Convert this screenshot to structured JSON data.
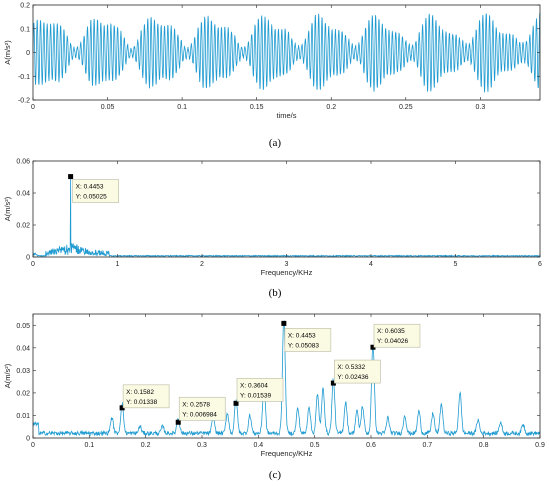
{
  "chart_data": [
    {
      "id": "a",
      "type": "line",
      "caption": "(a)",
      "xlabel": "time/s",
      "ylabel": "A(m/s²)",
      "xlim": [
        0,
        0.34
      ],
      "ylim": [
        -0.2,
        0.2
      ],
      "xticks": [
        0,
        0.05,
        0.1,
        0.15,
        0.2,
        0.25,
        0.3
      ],
      "xtick_labels": [
        "0",
        "0.05",
        "0.1",
        "0.15",
        "0.2",
        "0.25",
        "0.3"
      ],
      "yticks": [
        -0.2,
        -0.1,
        0,
        0.1,
        0.2
      ],
      "ytick_labels": [
        "-0.2",
        "-0.1",
        "0",
        "0.1",
        "0.2"
      ],
      "series": [
        {
          "carrier_hz": 445,
          "amplitude_peak": 0.17
        }
      ],
      "color": "#1f9bd1"
    },
    {
      "id": "b",
      "type": "line",
      "caption": "(b)",
      "xlabel": "Frequency/KHz",
      "ylabel": "A(m/s²)",
      "xlim": [
        0,
        6
      ],
      "ylim": [
        0,
        0.06
      ],
      "xticks": [
        0,
        1,
        2,
        3,
        4,
        5,
        6
      ],
      "xtick_labels": [
        "0",
        "1",
        "2",
        "3",
        "4",
        "5",
        "6"
      ],
      "yticks": [
        0,
        0.02,
        0.04,
        0.06
      ],
      "ytick_labels": [
        "0",
        "0.02",
        "0.04",
        "0.06"
      ],
      "peaks": [
        {
          "x": 0.4453,
          "y": 0.05025
        }
      ],
      "datatips": [
        {
          "x_label": "X: 0.4453",
          "y_label": "Y: 0.05025"
        }
      ],
      "color": "#1f9bd1"
    },
    {
      "id": "c",
      "type": "line",
      "caption": "(c)",
      "xlabel": "Frequency/KHz",
      "ylabel": "A(m/s²)",
      "xlim": [
        0,
        0.9
      ],
      "ylim": [
        0,
        0.055
      ],
      "xticks": [
        0,
        0.1,
        0.2,
        0.3,
        0.4,
        0.5,
        0.6,
        0.7,
        0.8,
        0.9
      ],
      "xtick_labels": [
        "0",
        "0.1",
        "0.2",
        "0.3",
        "0.4",
        "0.5",
        "0.6",
        "0.7",
        "0.8",
        "0.9"
      ],
      "yticks": [
        0,
        0.01,
        0.02,
        0.03,
        0.04,
        0.05
      ],
      "ytick_labels": [
        "0",
        "0.01",
        "0.02",
        "0.03",
        "0.04",
        "0.05"
      ],
      "peaks": [
        {
          "x": 0.1582,
          "y": 0.01338
        },
        {
          "x": 0.2578,
          "y": 0.006984
        },
        {
          "x": 0.3604,
          "y": 0.01539
        },
        {
          "x": 0.4453,
          "y": 0.05083
        },
        {
          "x": 0.5332,
          "y": 0.02436
        },
        {
          "x": 0.6035,
          "y": 0.04026
        }
      ],
      "minor_peaks": [
        {
          "x": 0.14,
          "y": 0.007
        },
        {
          "x": 0.19,
          "y": 0.003
        },
        {
          "x": 0.23,
          "y": 0.003
        },
        {
          "x": 0.32,
          "y": 0.007
        },
        {
          "x": 0.345,
          "y": 0.009
        },
        {
          "x": 0.385,
          "y": 0.008
        },
        {
          "x": 0.41,
          "y": 0.021
        },
        {
          "x": 0.47,
          "y": 0.011
        },
        {
          "x": 0.49,
          "y": 0.012
        },
        {
          "x": 0.505,
          "y": 0.017
        },
        {
          "x": 0.515,
          "y": 0.02
        },
        {
          "x": 0.555,
          "y": 0.014
        },
        {
          "x": 0.575,
          "y": 0.01
        },
        {
          "x": 0.585,
          "y": 0.012
        },
        {
          "x": 0.63,
          "y": 0.007
        },
        {
          "x": 0.66,
          "y": 0.008
        },
        {
          "x": 0.685,
          "y": 0.01
        },
        {
          "x": 0.71,
          "y": 0.009
        },
        {
          "x": 0.725,
          "y": 0.013
        },
        {
          "x": 0.758,
          "y": 0.018
        },
        {
          "x": 0.79,
          "y": 0.006
        },
        {
          "x": 0.83,
          "y": 0.005
        },
        {
          "x": 0.87,
          "y": 0.004
        }
      ],
      "datatips": [
        {
          "x_label": "X: 0.1582",
          "y_label": "Y: 0.01338"
        },
        {
          "x_label": "X: 0.2578",
          "y_label": "Y: 0.006984"
        },
        {
          "x_label": "X: 0.3604",
          "y_label": "Y: 0.01539"
        },
        {
          "x_label": "X: 0.4453",
          "y_label": "Y: 0.05083"
        },
        {
          "x_label": "X: 0.5332",
          "y_label": "Y: 0.02436"
        },
        {
          "x_label": "X: 0.6035",
          "y_label": "Y: 0.04026"
        }
      ],
      "color": "#1f9bd1"
    }
  ]
}
